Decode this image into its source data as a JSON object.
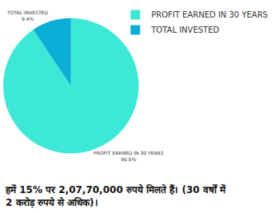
{
  "chart_data": {
    "type": "pie",
    "categories": [
      "PROFIT EARNED IN 30 YEARS",
      "TOTAL INVESTED"
    ],
    "values": [
      90.6,
      9.4
    ],
    "value_labels": [
      "90.6%",
      "9.4%"
    ],
    "colors": [
      "#3de8d6",
      "#0aaed6"
    ],
    "legend": "top right",
    "data_labels": true,
    "caption": [
      "हमें 15% पर 2,07,70,000 रुपये मिलते हैं। (30 वर्षों में",
      "2 करोड़ रुपये से अधिक)।"
    ]
  }
}
